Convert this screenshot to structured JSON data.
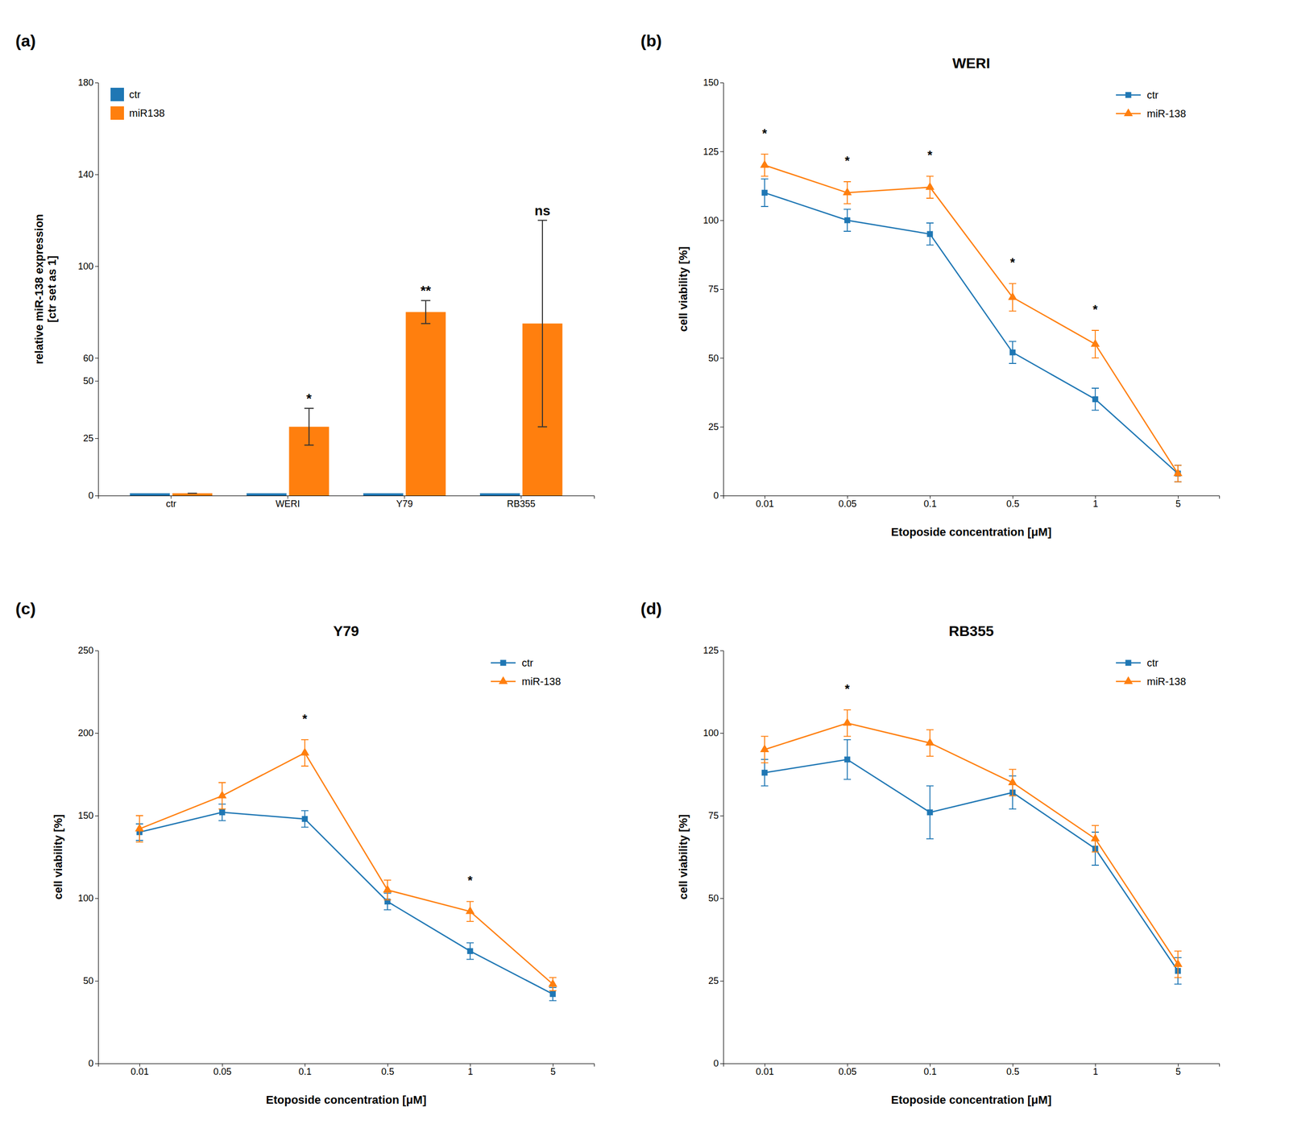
{
  "chart_data": [
    {
      "type": "bar",
      "annotations": [
        "(a)"
      ],
      "ylabel": "relative miR-138 expression\n[ctr set as 1]",
      "categories": [
        "ctr",
        "WERI",
        "Y79",
        "RB355"
      ],
      "series": [
        {
          "name": "ctr",
          "values": [
            1,
            1,
            1,
            1
          ]
        },
        {
          "name": "miR138",
          "values": [
            1,
            30,
            80,
            75
          ],
          "errors": [
            0,
            8,
            5,
            45
          ]
        }
      ],
      "significance": [
        null,
        "*",
        "**",
        "ns"
      ],
      "ylim": [
        0,
        180
      ],
      "yticks": [
        0,
        25,
        50,
        60,
        100,
        140,
        180
      ],
      "legend": "upper left"
    },
    {
      "type": "line",
      "annotations": [
        "(b)"
      ],
      "title": "WERI",
      "xlabel": "Etoposide concentration [μM]",
      "ylabel": "cell viability [%]",
      "categories": [
        "0.01",
        "0.05",
        "0.1",
        "0.5",
        "1",
        "5"
      ],
      "series": [
        {
          "name": "ctr",
          "marker": "square",
          "values": [
            110,
            100,
            95,
            52,
            35,
            8
          ],
          "errors": [
            5,
            4,
            4,
            4,
            4,
            3
          ]
        },
        {
          "name": "miR-138",
          "marker": "triangle",
          "values": [
            120,
            110,
            112,
            72,
            55,
            8
          ],
          "errors": [
            4,
            4,
            4,
            5,
            5,
            3
          ]
        }
      ],
      "significance": [
        "*",
        "*",
        "*",
        "*",
        "*",
        null
      ],
      "ylim": [
        0,
        150
      ],
      "yticks": [
        0,
        25,
        50,
        75,
        100,
        125,
        150
      ],
      "legend": "upper right"
    },
    {
      "type": "line",
      "annotations": [
        "(c)"
      ],
      "title": "Y79",
      "xlabel": "Etoposide concentration [μM]",
      "ylabel": "cell viability [%]",
      "categories": [
        "0.01",
        "0.05",
        "0.1",
        "0.5",
        "1",
        "5"
      ],
      "series": [
        {
          "name": "ctr",
          "marker": "square",
          "values": [
            140,
            152,
            148,
            98,
            68,
            42
          ],
          "errors": [
            5,
            5,
            5,
            5,
            5,
            4
          ]
        },
        {
          "name": "miR-138",
          "marker": "triangle",
          "values": [
            142,
            162,
            188,
            105,
            92,
            48
          ],
          "errors": [
            8,
            8,
            8,
            6,
            6,
            4
          ]
        }
      ],
      "significance": [
        null,
        null,
        "*",
        null,
        "*",
        null
      ],
      "ylim": [
        0,
        250
      ],
      "yticks": [
        0,
        50,
        100,
        150,
        200,
        250
      ],
      "legend": "upper right"
    },
    {
      "type": "line",
      "annotations": [
        "(d)"
      ],
      "title": "RB355",
      "xlabel": "Etoposide concentration [μM]",
      "ylabel": "cell viability [%]",
      "categories": [
        "0.01",
        "0.05",
        "0.1",
        "0.5",
        "1",
        "5"
      ],
      "series": [
        {
          "name": "ctr",
          "marker": "square",
          "values": [
            88,
            92,
            76,
            82,
            65,
            28
          ],
          "errors": [
            4,
            6,
            8,
            5,
            5,
            4
          ]
        },
        {
          "name": "miR-138",
          "marker": "triangle",
          "values": [
            95,
            103,
            97,
            85,
            68,
            30
          ],
          "errors": [
            4,
            4,
            4,
            4,
            4,
            4
          ]
        }
      ],
      "significance": [
        null,
        "*",
        null,
        null,
        null,
        null
      ],
      "ylim": [
        0,
        125
      ],
      "yticks": [
        0,
        25,
        50,
        75,
        100,
        125
      ],
      "legend": "upper right"
    }
  ]
}
